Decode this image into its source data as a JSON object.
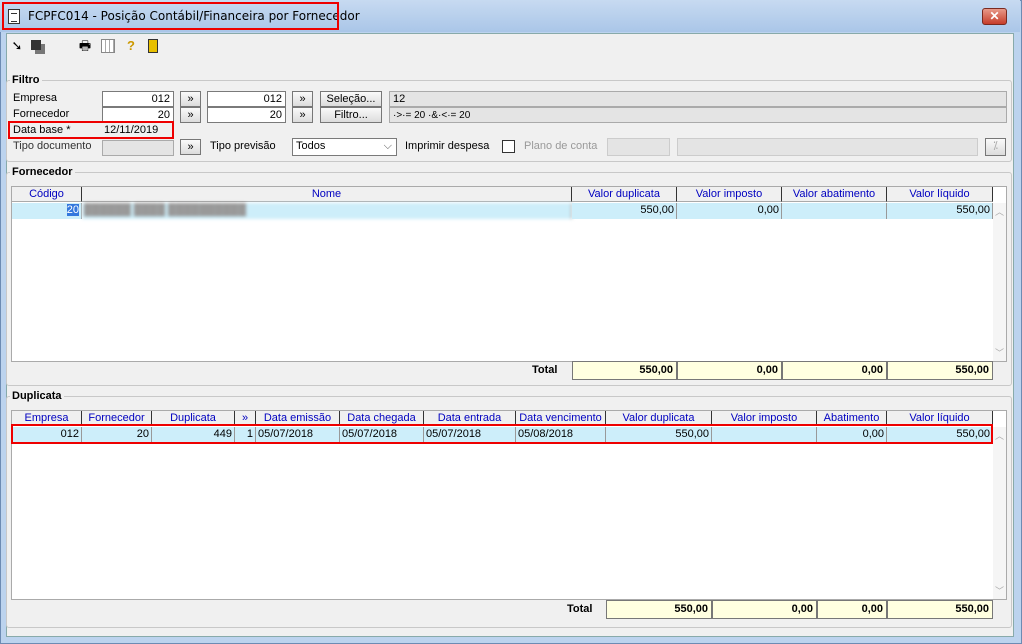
{
  "window": {
    "title": "FCPFC014 - Posição Contábil/Financeira por Fornecedor",
    "close": "✕"
  },
  "toolbar": {
    "icons": [
      "arrow-icon",
      "windows-icon",
      "printer-icon",
      "grid-icon",
      "help-icon",
      "exit-door-icon"
    ]
  },
  "filtro": {
    "legend": "Filtro",
    "empresa_label": "Empresa",
    "empresa_from": "012",
    "empresa_to": "012",
    "fornecedor_label": "Fornecedor",
    "fornecedor_from": "20",
    "fornecedor_to": "20",
    "data_base_label": "Data base *",
    "data_base": "12/11/2019",
    "tipo_documento_label": "Tipo documento",
    "tipo_documento": "",
    "tipo_previsao_label": "Tipo previsão",
    "tipo_previsao": "Todos",
    "imprimir_despesa_label": "Imprimir despesa",
    "imprimir_despesa_checked": false,
    "plano_conta_label": "Plano de conta",
    "selecao_button": "Seleção...",
    "filtro_button": "Filtro...",
    "arrow_button": "»",
    "selecao_value": "12",
    "filtro_value": "·>·= 20 ·&·<·= 20"
  },
  "fornecedor": {
    "legend": "Fornecedor",
    "columns": [
      "Código",
      "Nome",
      "Valor duplicata",
      "Valor imposto",
      "Valor abatimento",
      "Valor líquido"
    ],
    "rows": [
      [
        "20",
        "██████ ████ ██████████",
        "550,00",
        "0,00",
        "",
        "550,00"
      ]
    ],
    "total_label": "Total",
    "totals": [
      "550,00",
      "0,00",
      "0,00",
      "550,00"
    ]
  },
  "duplicata": {
    "legend": "Duplicata",
    "columns": [
      "Empresa",
      "Fornecedor",
      "Duplicata",
      "»",
      "Data emissão",
      "Data chegada",
      "Data entrada",
      "Data vencimento",
      "Valor duplicata",
      "Valor imposto",
      "Abatimento",
      "Valor líquido"
    ],
    "rows": [
      [
        "012",
        "20",
        "449",
        "1",
        "05/07/2018",
        "05/07/2018",
        "05/07/2018",
        "05/08/2018",
        "550,00",
        "",
        "0,00",
        "550,00"
      ]
    ],
    "total_label": "Total",
    "totals": [
      "550,00",
      "0,00",
      "0,00",
      "550,00"
    ]
  }
}
